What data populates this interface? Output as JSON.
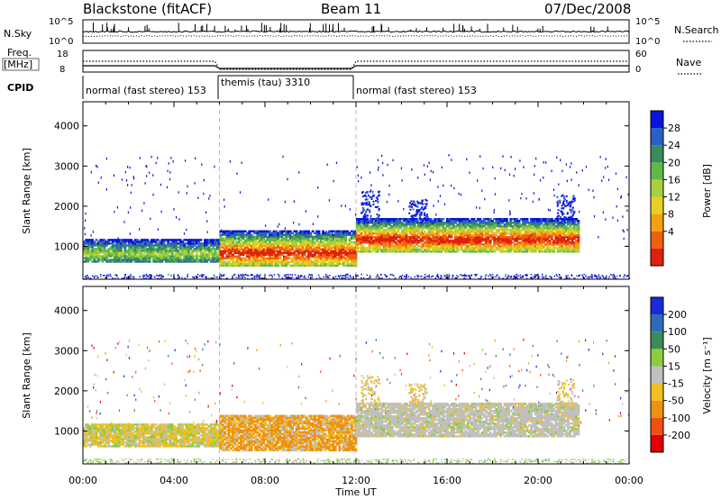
{
  "header": {
    "station": "Blackstone (fitACF)",
    "beam": "Beam 11",
    "date": "07/Dec/2008"
  },
  "top_panels": {
    "nsky_label": "N.Sky",
    "nsearch_label": "N.Search",
    "nsky_ticks": [
      "10^5",
      "10^0"
    ],
    "nsky_right_ticks": [
      "10^5",
      "10^0"
    ],
    "freq_label_1": "Freq.",
    "freq_label_2": "[MHz]",
    "freq_ticks": [
      "18",
      "8"
    ],
    "nave_ticks": [
      "60",
      "0"
    ],
    "nave_label": "Nave",
    "cpid_label": "CPID",
    "cpid_segments": [
      {
        "text": "normal (fast stereo) 153",
        "start_hour": 0,
        "end_hour": 6
      },
      {
        "text": "themis (tau) 3310",
        "start_hour": 6,
        "end_hour": 12
      },
      {
        "text": "normal (fast stereo) 153",
        "start_hour": 12,
        "end_hour": 24
      }
    ]
  },
  "chart_data": [
    {
      "type": "heatmap",
      "name": "power-panel",
      "ylabel": "Slant Range [km]",
      "yticks": [
        "4000",
        "3000",
        "2000",
        "1000"
      ],
      "ylim": [
        180,
        4600
      ],
      "xlim": [
        0,
        24
      ],
      "colorbar": {
        "label": "Power [dB]",
        "ticks": [
          "28",
          "24",
          "20",
          "16",
          "12",
          "8",
          "4"
        ],
        "range": [
          0,
          30
        ],
        "colors": [
          "#0a14d8",
          "#2a5fc8",
          "#3a8a5a",
          "#60b848",
          "#a8d040",
          "#e8d020",
          "#f5a010",
          "#f06010",
          "#e02010"
        ]
      },
      "echo_regions": [
        {
          "t0": 0.0,
          "t1": 6.0,
          "r_lo": 600,
          "r_hi": 1150,
          "level": "low"
        },
        {
          "t0": 6.0,
          "t1": 12.0,
          "r_lo": 500,
          "r_hi": 1400,
          "level": "high"
        },
        {
          "t0": 12.0,
          "t1": 21.8,
          "r_lo": 850,
          "r_hi": 1700,
          "level": "high"
        }
      ]
    },
    {
      "type": "heatmap",
      "name": "velocity-panel",
      "ylabel": "Slant Range [km]",
      "yticks": [
        "4000",
        "3000",
        "2000",
        "1000"
      ],
      "ylim": [
        180,
        4600
      ],
      "xlim": [
        0,
        24
      ],
      "xticks": [
        "00:00",
        "04:00",
        "08:00",
        "12:00",
        "16:00",
        "20:00",
        "00:00"
      ],
      "xlabel": "Time UT",
      "colorbar": {
        "label": "Velocity [m s⁻¹]",
        "ticks": [
          "200",
          "100",
          "50",
          "15",
          "-15",
          "-50",
          "-100",
          "-200"
        ],
        "colors": [
          "#1a2ad8",
          "#2f6ab8",
          "#3a8a5a",
          "#8ccc40",
          "#c0c0c0",
          "#f0c020",
          "#f09010",
          "#f05010",
          "#e00000"
        ]
      },
      "echo_regions": [
        {
          "t0": 0.0,
          "t1": 6.0,
          "r_lo": 600,
          "r_hi": 1150,
          "velocity": "negative-small"
        },
        {
          "t0": 6.0,
          "t1": 12.0,
          "r_lo": 500,
          "r_hi": 1400,
          "velocity": "negative"
        },
        {
          "t0": 12.0,
          "t1": 21.8,
          "r_lo": 850,
          "r_hi": 1700,
          "velocity": "near-zero"
        }
      ]
    }
  ]
}
